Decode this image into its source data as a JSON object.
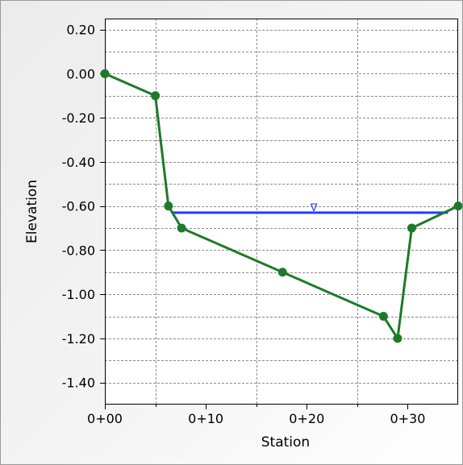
{
  "chart_data": {
    "type": "line",
    "xlabel": "Station",
    "ylabel": "Elevation",
    "xlim": [
      0,
      35
    ],
    "ylim": [
      -1.5,
      0.25
    ],
    "x_ticks": [
      {
        "value": 0,
        "label": "0+00"
      },
      {
        "value": 10,
        "label": "0+10"
      },
      {
        "value": 20,
        "label": "0+20"
      },
      {
        "value": 30,
        "label": "0+30"
      }
    ],
    "y_ticks": [
      {
        "value": 0.2,
        "label": "0.20"
      },
      {
        "value": 0.0,
        "label": "0.00"
      },
      {
        "value": -0.2,
        "label": "-0.20"
      },
      {
        "value": -0.4,
        "label": "-0.40"
      },
      {
        "value": -0.6,
        "label": "-0.60"
      },
      {
        "value": -0.8,
        "label": "-0.80"
      },
      {
        "value": -1.0,
        "label": "-1.00"
      },
      {
        "value": -1.2,
        "label": "-1.20"
      },
      {
        "value": -1.4,
        "label": "-1.40"
      }
    ],
    "grid": true,
    "series": [
      {
        "color": "#1e7a2a",
        "x": [
          0,
          5,
          6.3,
          7.6,
          17.6,
          27.6,
          29,
          30.4,
          35
        ],
        "y": [
          0.0,
          -0.1,
          -0.6,
          -0.7,
          -0.9,
          -1.1,
          -1.2,
          -0.7,
          -0.6
        ]
      }
    ],
    "water_surface": {
      "color": "#1f3fff",
      "elevation": -0.63,
      "x_start": 6.6,
      "x_end": 34,
      "marker_x": 20.7,
      "marker_symbol": "∇"
    }
  }
}
